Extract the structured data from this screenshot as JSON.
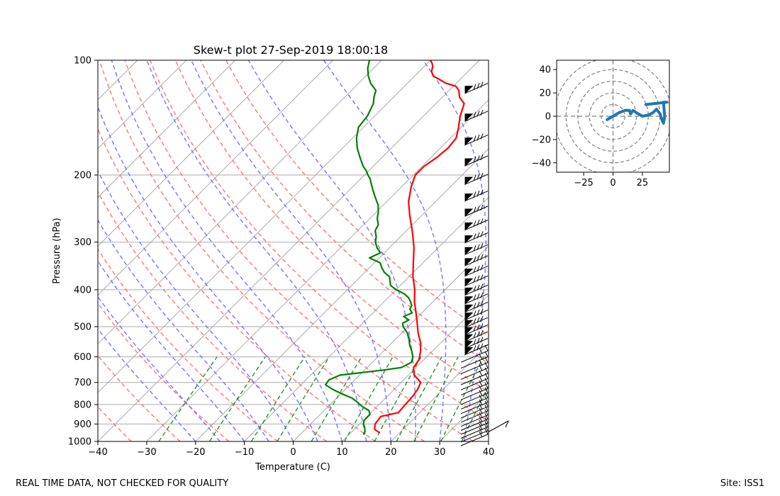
{
  "chart_data": [
    {
      "type": "line",
      "subtype": "skew-t",
      "title": "Skew-t plot 27-Sep-2019 18:00:18",
      "xlabel": "Temperature (C)",
      "ylabel": "Pressure (hPa)",
      "xlim": [
        -40,
        40
      ],
      "ylim": [
        1000,
        100
      ],
      "x_ticks": [
        -40,
        -30,
        -20,
        -10,
        0,
        10,
        20,
        30,
        40
      ],
      "y_ticks": [
        1000,
        900,
        800,
        700,
        600,
        500,
        400,
        300,
        200,
        100
      ],
      "grid": true,
      "series": [
        {
          "name": "Temperature",
          "color": "#ff0000",
          "points": [
            [
              950,
              16.0
            ],
            [
              930,
              14.2
            ],
            [
              900,
              13.2
            ],
            [
              880,
              13.0
            ],
            [
              860,
              12.8
            ],
            [
              840,
              15.6
            ],
            [
              800,
              15.4
            ],
            [
              760,
              15.2
            ],
            [
              730,
              14.8
            ],
            [
              700,
              14.0
            ],
            [
              670,
              11.2
            ],
            [
              640,
              9.5
            ],
            [
              610,
              9.0
            ],
            [
              580,
              7.6
            ],
            [
              550,
              5.8
            ],
            [
              520,
              3.4
            ],
            [
              490,
              1.2
            ],
            [
              460,
              -1.2
            ],
            [
              430,
              -3.8
            ],
            [
              400,
              -6.2
            ],
            [
              370,
              -9.2
            ],
            [
              340,
              -12.0
            ],
            [
              310,
              -15.0
            ],
            [
              280,
              -18.8
            ],
            [
              255,
              -22.5
            ],
            [
              235,
              -25.5
            ],
            [
              215,
              -28.0
            ],
            [
              200,
              -29.6
            ],
            [
              190,
              -29.6
            ],
            [
              180,
              -28.8
            ],
            [
              170,
              -28.4
            ],
            [
              160,
              -28.8
            ],
            [
              150,
              -30.5
            ],
            [
              140,
              -32.5
            ],
            [
              130,
              -34.2
            ],
            [
              125,
              -36.5
            ],
            [
              120,
              -38.0
            ],
            [
              117,
              -39.5
            ],
            [
              115,
              -42.0
            ],
            [
              112,
              -44.5
            ],
            [
              110,
              -46.2
            ],
            [
              107,
              -47.5
            ],
            [
              104,
              -48.2
            ],
            [
              102,
              -49.0
            ],
            [
              100,
              -50.0
            ]
          ]
        },
        {
          "name": "Dewpoint",
          "color": "#008000",
          "points": [
            [
              960,
              13.0
            ],
            [
              940,
              12.6
            ],
            [
              920,
              11.8
            ],
            [
              900,
              10.8
            ],
            [
              880,
              10.2
            ],
            [
              850,
              10.2
            ],
            [
              830,
              9.2
            ],
            [
              810,
              7.0
            ],
            [
              790,
              5.2
            ],
            [
              770,
              3.2
            ],
            [
              750,
              0.2
            ],
            [
              730,
              -2.6
            ],
            [
              710,
              -5.0
            ],
            [
              690,
              -5.3
            ],
            [
              670,
              -4.0
            ],
            [
              650,
              3.8
            ],
            [
              640,
              7.0
            ],
            [
              620,
              8.0
            ],
            [
              600,
              7.2
            ],
            [
              580,
              5.8
            ],
            [
              560,
              4.2
            ],
            [
              540,
              2.8
            ],
            [
              520,
              1.2
            ],
            [
              500,
              -1.0
            ],
            [
              490,
              -1.8
            ],
            [
              480,
              -1.2
            ],
            [
              470,
              -3.0
            ],
            [
              460,
              -2.0
            ],
            [
              450,
              -3.2
            ],
            [
              440,
              -3.6
            ],
            [
              430,
              -4.6
            ],
            [
              420,
              -5.8
            ],
            [
              410,
              -7.5
            ],
            [
              400,
              -10.0
            ],
            [
              390,
              -12.0
            ],
            [
              380,
              -13.0
            ],
            [
              370,
              -14.0
            ],
            [
              360,
              -16.0
            ],
            [
              350,
              -17.5
            ],
            [
              340,
              -18.8
            ],
            [
              330,
              -22.0
            ],
            [
              320,
              -20.8
            ],
            [
              310,
              -22.6
            ],
            [
              300,
              -24.0
            ],
            [
              290,
              -25.0
            ],
            [
              280,
              -26.4
            ],
            [
              270,
              -27.0
            ],
            [
              260,
              -28.5
            ],
            [
              250,
              -29.6
            ],
            [
              240,
              -31.0
            ],
            [
              230,
              -33.0
            ],
            [
              220,
              -35.0
            ],
            [
              210,
              -37.0
            ],
            [
              205,
              -38.0
            ],
            [
              200,
              -39.3
            ],
            [
              195,
              -40.5
            ],
            [
              190,
              -42.0
            ],
            [
              180,
              -44.5
            ],
            [
              170,
              -47.0
            ],
            [
              160,
              -49.2
            ],
            [
              150,
              -51.0
            ],
            [
              140,
              -51.5
            ],
            [
              130,
              -52.8
            ],
            [
              125,
              -54.0
            ],
            [
              120,
              -55.0
            ],
            [
              115,
              -57.5
            ],
            [
              110,
              -59.5
            ],
            [
              105,
              -61.2
            ],
            [
              100,
              -62.5
            ]
          ]
        }
      ],
      "reference_lines": {
        "isotherms_color": "#aaaaaa",
        "dry_adiabats_color": "#ff6666",
        "moist_adiabats_color": "#6666ff",
        "mixing_ratio_color": "#228b22"
      }
    },
    {
      "type": "line",
      "subtype": "hodograph",
      "title": "",
      "xlim": [
        -48,
        48
      ],
      "ylim": [
        -48,
        48
      ],
      "x_ticks": [
        -25,
        0,
        25
      ],
      "y_ticks": [
        -40,
        -20,
        0,
        20,
        40
      ],
      "rings": [
        10,
        20,
        30,
        40,
        50
      ],
      "color": "#1f77b4",
      "points": [
        [
          -5,
          -3
        ],
        [
          0,
          0
        ],
        [
          5,
          3
        ],
        [
          10,
          5
        ],
        [
          14,
          5
        ],
        [
          15,
          2
        ],
        [
          17,
          5
        ],
        [
          20,
          3
        ],
        [
          25,
          0
        ],
        [
          30,
          1
        ],
        [
          34,
          3
        ],
        [
          37,
          6
        ],
        [
          40,
          2
        ],
        [
          42,
          -4
        ],
        [
          43,
          -6
        ],
        [
          44,
          0
        ],
        [
          43,
          12
        ],
        [
          46,
          12
        ],
        [
          28,
          10
        ]
      ]
    }
  ],
  "footer": {
    "disclaimer": "REAL TIME DATA, NOT CHECKED FOR QUALITY",
    "site": "Site: ISS1"
  }
}
